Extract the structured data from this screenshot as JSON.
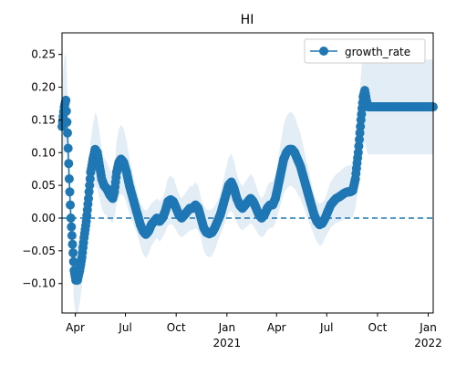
{
  "colors": {
    "series": "#1f77b4",
    "band": "#1f77b4",
    "zero_line": "#1f77b4",
    "axes": "#000000",
    "background": "#ffffff"
  },
  "chart_data": {
    "type": "line",
    "title": "HI",
    "xlabel": "",
    "ylabel": "",
    "x_axis": "date",
    "xlim": [
      "2020-03-08",
      "2022-01-10"
    ],
    "ylim": [
      -0.145,
      0.283
    ],
    "yticks": [
      -0.1,
      -0.05,
      0.0,
      0.05,
      0.1,
      0.15,
      0.2,
      0.25
    ],
    "ytick_labels": [
      "−0.10",
      "−0.05",
      "0.00",
      "0.05",
      "0.10",
      "0.15",
      "0.20",
      "0.25"
    ],
    "xticks": [
      {
        "date": "2020-04-01",
        "label": "Apr",
        "sublabel": ""
      },
      {
        "date": "2020-07-01",
        "label": "Jul",
        "sublabel": ""
      },
      {
        "date": "2020-10-01",
        "label": "Oct",
        "sublabel": ""
      },
      {
        "date": "2021-01-01",
        "label": "Jan",
        "sublabel": "2021"
      },
      {
        "date": "2021-04-01",
        "label": "Apr",
        "sublabel": ""
      },
      {
        "date": "2021-07-01",
        "label": "Jul",
        "sublabel": ""
      },
      {
        "date": "2021-10-01",
        "label": "Oct",
        "sublabel": ""
      },
      {
        "date": "2022-01-01",
        "label": "Jan",
        "sublabel": "2022"
      }
    ],
    "legend": {
      "position": "top-right",
      "entries": [
        "growth_rate"
      ]
    },
    "grid": false,
    "reference_line": {
      "y": 0,
      "style": "dashed"
    },
    "series": [
      {
        "name": "growth_rate",
        "marker": "circle",
        "points": [
          [
            "2020-03-08",
            0.14
          ],
          [
            "2020-03-12",
            0.17
          ],
          [
            "2020-03-15",
            0.18
          ],
          [
            "2020-03-18",
            0.13
          ],
          [
            "2020-03-21",
            0.06
          ],
          [
            "2020-03-24",
            0.0
          ],
          [
            "2020-03-27",
            -0.04
          ],
          [
            "2020-03-30",
            -0.08
          ],
          [
            "2020-04-02",
            -0.095
          ],
          [
            "2020-04-05",
            -0.095
          ],
          [
            "2020-04-09",
            -0.08
          ],
          [
            "2020-04-13",
            -0.06
          ],
          [
            "2020-04-17",
            -0.03
          ],
          [
            "2020-04-21",
            -0.005
          ],
          [
            "2020-04-25",
            0.03
          ],
          [
            "2020-04-29",
            0.07
          ],
          [
            "2020-05-03",
            0.09
          ],
          [
            "2020-05-07",
            0.105
          ],
          [
            "2020-05-11",
            0.1
          ],
          [
            "2020-05-15",
            0.08
          ],
          [
            "2020-05-19",
            0.06
          ],
          [
            "2020-05-23",
            0.05
          ],
          [
            "2020-05-28",
            0.045
          ],
          [
            "2020-06-03",
            0.035
          ],
          [
            "2020-06-08",
            0.03
          ],
          [
            "2020-06-11",
            0.04
          ],
          [
            "2020-06-15",
            0.07
          ],
          [
            "2020-06-19",
            0.085
          ],
          [
            "2020-06-23",
            0.09
          ],
          [
            "2020-06-28",
            0.085
          ],
          [
            "2020-07-03",
            0.07
          ],
          [
            "2020-07-08",
            0.05
          ],
          [
            "2020-07-13",
            0.035
          ],
          [
            "2020-07-18",
            0.02
          ],
          [
            "2020-07-23",
            0.005
          ],
          [
            "2020-07-28",
            -0.01
          ],
          [
            "2020-08-02",
            -0.02
          ],
          [
            "2020-08-07",
            -0.025
          ],
          [
            "2020-08-12",
            -0.02
          ],
          [
            "2020-08-17",
            -0.01
          ],
          [
            "2020-08-22",
            -0.005
          ],
          [
            "2020-08-27",
            0.0
          ],
          [
            "2020-09-01",
            -0.005
          ],
          [
            "2020-09-06",
            0.0
          ],
          [
            "2020-09-11",
            0.01
          ],
          [
            "2020-09-16",
            0.025
          ],
          [
            "2020-09-21",
            0.028
          ],
          [
            "2020-09-26",
            0.025
          ],
          [
            "2020-10-01",
            0.015
          ],
          [
            "2020-10-06",
            0.005
          ],
          [
            "2020-10-11",
            0.0
          ],
          [
            "2020-10-16",
            0.005
          ],
          [
            "2020-10-21",
            0.01
          ],
          [
            "2020-10-26",
            0.015
          ],
          [
            "2020-10-31",
            0.015
          ],
          [
            "2020-11-05",
            0.02
          ],
          [
            "2020-11-10",
            0.015
          ],
          [
            "2020-11-15",
            0.0
          ],
          [
            "2020-11-20",
            -0.015
          ],
          [
            "2020-11-25",
            -0.022
          ],
          [
            "2020-11-30",
            -0.024
          ],
          [
            "2020-12-05",
            -0.022
          ],
          [
            "2020-12-10",
            -0.015
          ],
          [
            "2020-12-15",
            -0.005
          ],
          [
            "2020-12-20",
            0.005
          ],
          [
            "2020-12-25",
            0.02
          ],
          [
            "2020-12-30",
            0.035
          ],
          [
            "2021-01-04",
            0.05
          ],
          [
            "2021-01-09",
            0.055
          ],
          [
            "2021-01-14",
            0.045
          ],
          [
            "2021-01-19",
            0.03
          ],
          [
            "2021-01-24",
            0.02
          ],
          [
            "2021-01-29",
            0.015
          ],
          [
            "2021-02-03",
            0.02
          ],
          [
            "2021-02-08",
            0.025
          ],
          [
            "2021-02-13",
            0.03
          ],
          [
            "2021-02-18",
            0.025
          ],
          [
            "2021-02-23",
            0.015
          ],
          [
            "2021-02-28",
            0.005
          ],
          [
            "2021-03-05",
            0.0
          ],
          [
            "2021-03-10",
            0.005
          ],
          [
            "2021-03-15",
            0.015
          ],
          [
            "2021-03-20",
            0.02
          ],
          [
            "2021-03-25",
            0.02
          ],
          [
            "2021-03-30",
            0.03
          ],
          [
            "2021-04-04",
            0.05
          ],
          [
            "2021-04-09",
            0.07
          ],
          [
            "2021-04-14",
            0.09
          ],
          [
            "2021-04-19",
            0.1
          ],
          [
            "2021-04-24",
            0.105
          ],
          [
            "2021-04-29",
            0.105
          ],
          [
            "2021-05-04",
            0.1
          ],
          [
            "2021-05-09",
            0.09
          ],
          [
            "2021-05-14",
            0.08
          ],
          [
            "2021-05-19",
            0.065
          ],
          [
            "2021-05-24",
            0.05
          ],
          [
            "2021-05-29",
            0.035
          ],
          [
            "2021-06-03",
            0.02
          ],
          [
            "2021-06-08",
            0.005
          ],
          [
            "2021-06-13",
            -0.005
          ],
          [
            "2021-06-18",
            -0.01
          ],
          [
            "2021-06-23",
            -0.008
          ],
          [
            "2021-06-28",
            0.0
          ],
          [
            "2021-07-03",
            0.01
          ],
          [
            "2021-07-08",
            0.02
          ],
          [
            "2021-07-13",
            0.025
          ],
          [
            "2021-07-18",
            0.03
          ],
          [
            "2021-07-23",
            0.032
          ],
          [
            "2021-07-28",
            0.035
          ],
          [
            "2021-08-02",
            0.038
          ],
          [
            "2021-08-07",
            0.04
          ],
          [
            "2021-08-12",
            0.04
          ],
          [
            "2021-08-17",
            0.042
          ],
          [
            "2021-08-22",
            0.06
          ],
          [
            "2021-08-27",
            0.1
          ],
          [
            "2021-09-01",
            0.15
          ],
          [
            "2021-09-05",
            0.185
          ],
          [
            "2021-09-08",
            0.195
          ],
          [
            "2021-09-11",
            0.18
          ],
          [
            "2021-09-14",
            0.17
          ],
          [
            "2021-09-22",
            0.17
          ],
          [
            "2021-10-05",
            0.17
          ],
          [
            "2021-10-20",
            0.17
          ],
          [
            "2021-11-05",
            0.17
          ],
          [
            "2021-11-20",
            0.17
          ],
          [
            "2021-12-05",
            0.17
          ],
          [
            "2021-12-20",
            0.17
          ],
          [
            "2022-01-05",
            0.17
          ],
          [
            "2022-01-10",
            0.17
          ]
        ]
      }
    ]
  }
}
